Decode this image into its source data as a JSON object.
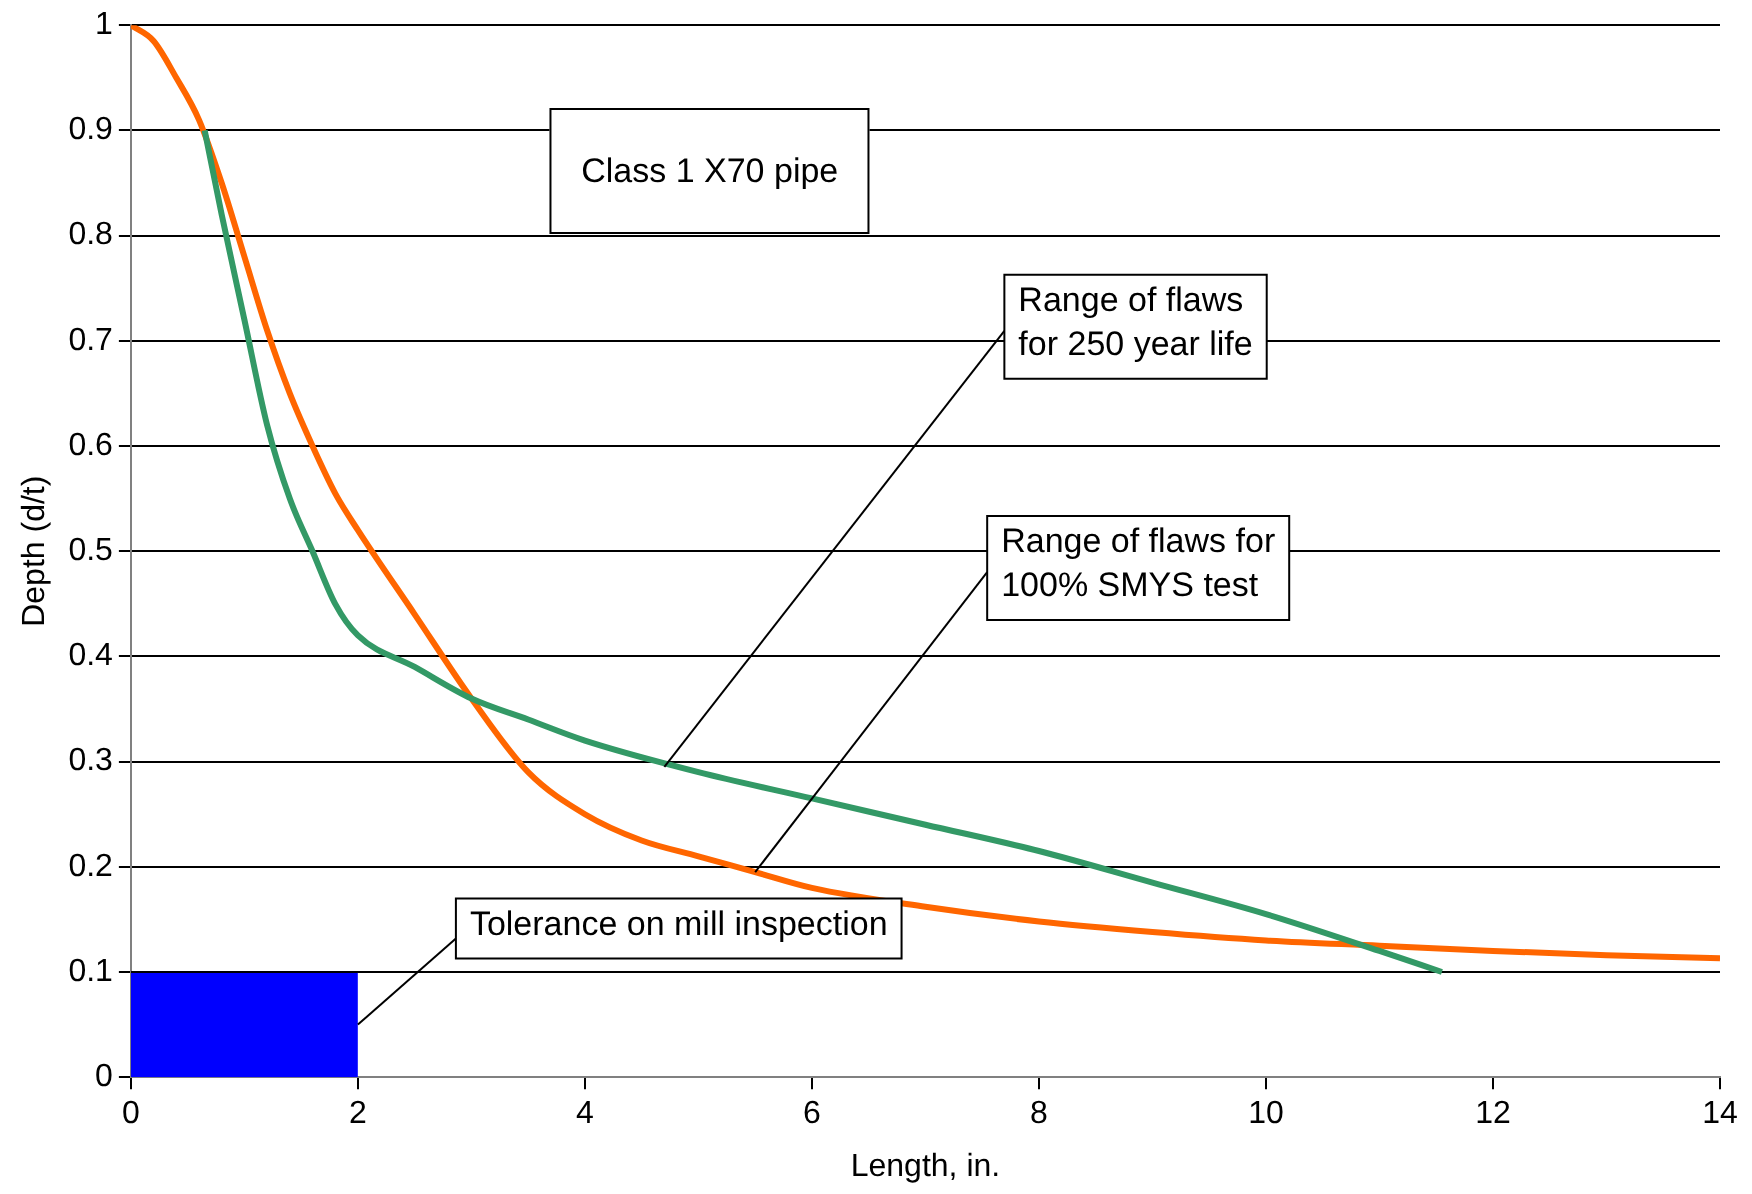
{
  "chart_data": {
    "type": "line",
    "title": "Class 1 X70 pipe",
    "xlabel": "Length, in.",
    "ylabel": "Depth (d/t)",
    "xlim": [
      0,
      14
    ],
    "xticks": [
      0,
      2,
      4,
      6,
      8,
      10,
      12,
      14
    ],
    "ylim": [
      0,
      1
    ],
    "yticks": [
      0,
      0.1,
      0.2,
      0.3,
      0.4,
      0.5,
      0.6,
      0.7,
      0.8,
      0.9,
      1
    ],
    "grid": "y",
    "legend": false,
    "marker": "none",
    "line_style": "solid",
    "series": [
      {
        "type": "line",
        "color": "#ff6600",
        "x": [
          0,
          0.2,
          0.4,
          0.6,
          0.8,
          1.0,
          1.2,
          1.4,
          1.6,
          1.8,
          2.0,
          2.5,
          3.0,
          3.5,
          4,
          4.5,
          5,
          5.5,
          6,
          7,
          8,
          9,
          10,
          11,
          12,
          13,
          14
        ],
        "values": [
          1.0,
          0.985,
          0.95,
          0.91,
          0.85,
          0.78,
          0.71,
          0.65,
          0.6,
          0.555,
          0.52,
          0.44,
          0.36,
          0.29,
          0.25,
          0.225,
          0.21,
          0.195,
          0.18,
          0.162,
          0.148,
          0.138,
          0.13,
          0.125,
          0.12,
          0.116,
          0.113
        ]
      },
      {
        "type": "line",
        "color": "#339966",
        "x": [
          0.65,
          0.8,
          1.0,
          1.2,
          1.4,
          1.6,
          1.8,
          2.0,
          2.5,
          3,
          3.5,
          4,
          5,
          6,
          7,
          8,
          9,
          10,
          11,
          11.55
        ],
        "values": [
          0.9,
          0.82,
          0.72,
          0.62,
          0.55,
          0.5,
          0.45,
          0.42,
          0.39,
          0.36,
          0.34,
          0.32,
          0.29,
          0.265,
          0.24,
          0.215,
          0.185,
          0.155,
          0.12,
          0.1
        ]
      },
      {
        "type": "area",
        "color": "#0000ff",
        "x": [
          0,
          2
        ],
        "values": [
          0.1,
          0.1
        ]
      }
    ],
    "annotations": [
      {
        "text": "Range of flaws for 250 year life",
        "x": 4.7,
        "y": 0.295
      },
      {
        "text": "Range of flaws for 100% SMYS test",
        "x": 5.5,
        "y": 0.195
      },
      {
        "text": "Tolerance on mill inspection",
        "x": 2,
        "y": 0.05
      }
    ]
  }
}
